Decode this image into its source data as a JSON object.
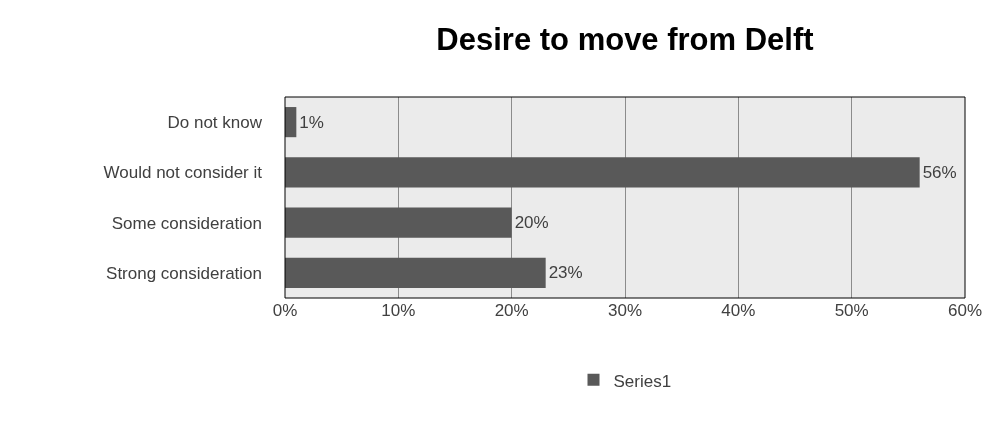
{
  "chart_data": {
    "type": "bar",
    "orientation": "horizontal",
    "title": "Desire to move from Delft",
    "categories": [
      "Do not know",
      "Would not consider it",
      "Some consideration",
      "Strong consideration"
    ],
    "series": [
      {
        "name": "Series1",
        "color": "#595959",
        "values": [
          1,
          56,
          20,
          23
        ],
        "value_labels": [
          "1%",
          "56%",
          "20%",
          "23%"
        ]
      }
    ],
    "xlim": [
      0,
      60
    ],
    "xticks": [
      {
        "value": 0,
        "label": "0%"
      },
      {
        "value": 10,
        "label": "10%"
      },
      {
        "value": 20,
        "label": "20%"
      },
      {
        "value": 30,
        "label": "30%"
      },
      {
        "value": 40,
        "label": "40%"
      },
      {
        "value": 50,
        "label": "50%"
      },
      {
        "value": 60,
        "label": "60%"
      }
    ],
    "grid": "x",
    "legend": "bottom"
  }
}
